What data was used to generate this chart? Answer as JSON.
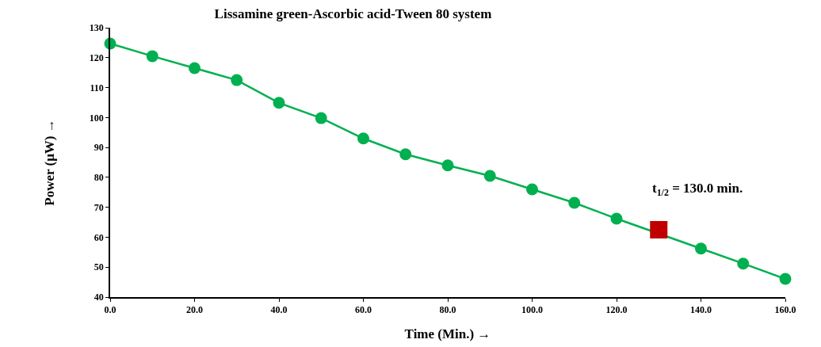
{
  "chart_data": {
    "type": "line",
    "title": "Lissamine green-Ascorbic acid-Tween 80 system",
    "xlabel": "Time (Min.) →",
    "ylabel": "Power (μW) →",
    "xlim": [
      0,
      160
    ],
    "xticks": [
      {
        "value": 0,
        "label": "0.0"
      },
      {
        "value": 20,
        "label": "20.0"
      },
      {
        "value": 40,
        "label": "40.0"
      },
      {
        "value": 60,
        "label": "60.0"
      },
      {
        "value": 80,
        "label": "80.0"
      },
      {
        "value": 100,
        "label": "100.0"
      },
      {
        "value": 120,
        "label": "120.0"
      },
      {
        "value": 140,
        "label": "140.0"
      },
      {
        "value": 160,
        "label": "160.0"
      }
    ],
    "ylim": [
      40,
      130
    ],
    "yticks": [
      40,
      50,
      60,
      70,
      80,
      90,
      100,
      110,
      120,
      130
    ],
    "grid": false,
    "series": [
      {
        "color": "#00b050",
        "marker": "circle",
        "x": [
          0,
          10,
          20,
          30,
          40,
          50,
          60,
          70,
          80,
          90,
          100,
          110,
          120,
          140,
          150,
          160
        ],
        "values": [
          124.7,
          120.5,
          116.5,
          112.5,
          104.9,
          99.8,
          93.0,
          87.7,
          84.0,
          80.5,
          76.0,
          71.5,
          66.2,
          56.2,
          51.2,
          46.1
        ]
      },
      {
        "type": "scatter",
        "color": "#c00000",
        "marker": "square",
        "x": [
          130
        ],
        "values": [
          62.5
        ]
      }
    ],
    "annotations": [
      "t$_{1/2}$ = 130.0 min."
    ]
  }
}
